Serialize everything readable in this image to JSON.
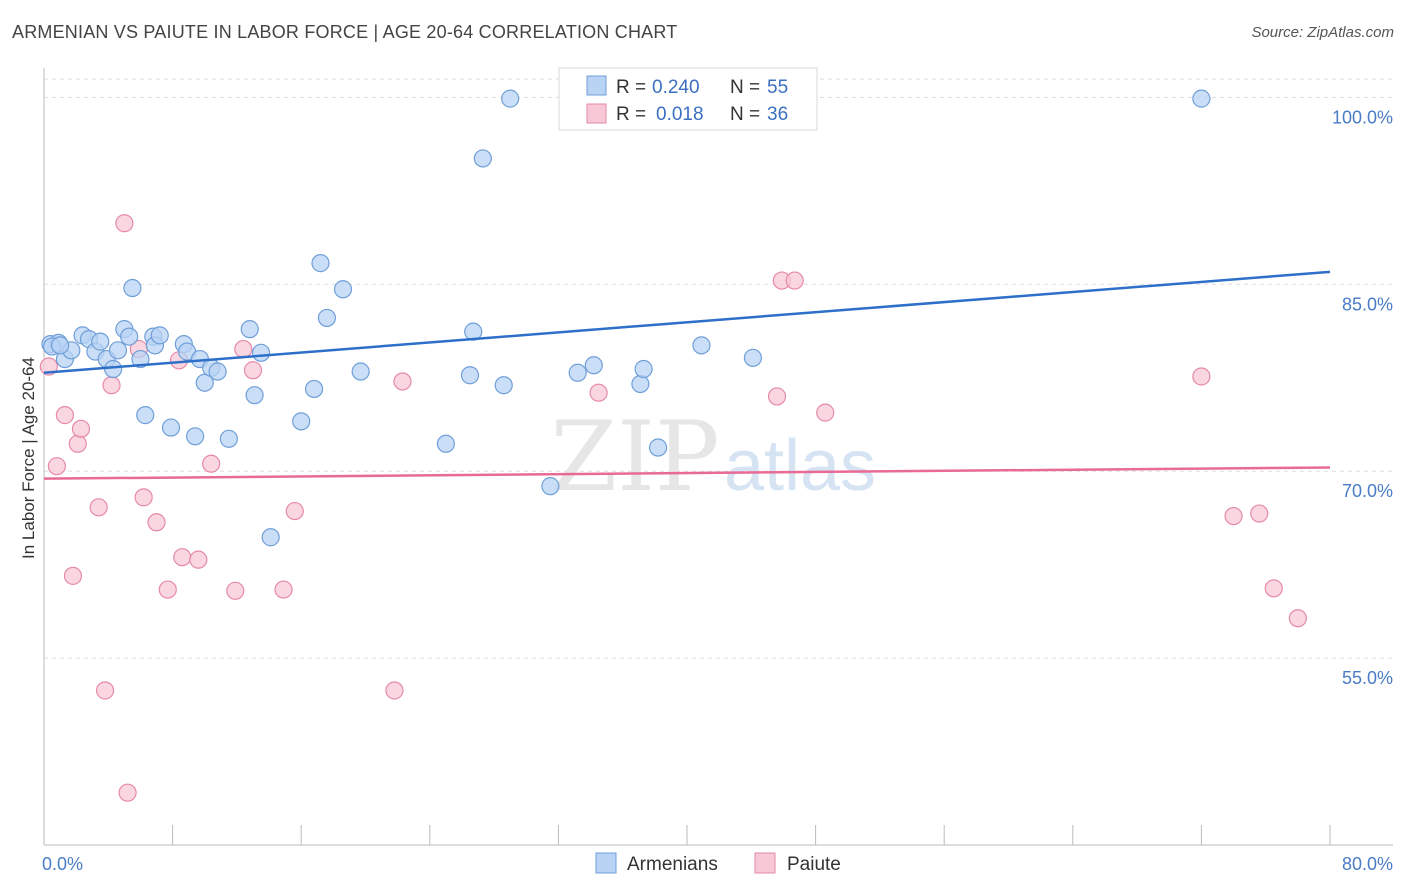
{
  "title": "ARMENIAN VS PAIUTE IN LABOR FORCE | AGE 20-64 CORRELATION CHART",
  "source": "Source: ZipAtlas.com",
  "watermark": {
    "zip": "ZIP",
    "atlas": "atlas"
  },
  "colors": {
    "armenian_fill": "#b8d3f4",
    "armenian_stroke": "#6f9fd8",
    "armenian_line": "#2d6fc9",
    "paiute_fill": "#f8c8d6",
    "paiute_stroke": "#e68aa8",
    "paiute_line": "#e86a95",
    "grid": "#dddddd",
    "tick_text": "#4a7cc5"
  },
  "legend": {
    "rows": [
      {
        "r_label": "R =",
        "r_value": "0.240",
        "n_label": "N =",
        "n_value": "55"
      },
      {
        "r_label": "R =",
        "r_value": "0.018",
        "n_label": "N =",
        "n_value": "36"
      }
    ]
  },
  "chart_data": {
    "type": "scatter",
    "title": "ARMENIAN VS PAIUTE IN LABOR FORCE | AGE 20-64 CORRELATION CHART",
    "xlabel": "",
    "ylabel": "In Labor Force | Age 20-64",
    "xlim": [
      0,
      80
    ],
    "ylim": [
      40,
      103
    ],
    "x_tick_labels": [
      {
        "value": 0,
        "label": "0.0%"
      },
      {
        "value": 80,
        "label": "80.0%"
      }
    ],
    "y_ticks": [
      {
        "value": 100,
        "label": "100.0%"
      },
      {
        "value": 85,
        "label": "85.0%"
      },
      {
        "value": 70,
        "label": "70.0%"
      },
      {
        "value": 55,
        "label": "55.0%"
      }
    ],
    "legend_position": "top-center",
    "series": [
      {
        "name": "Armenians",
        "trend": {
          "x": [
            0,
            80
          ],
          "y": [
            77.9,
            86.0
          ]
        },
        "points": [
          [
            0.4,
            80.2
          ],
          [
            0.9,
            80.3
          ],
          [
            1.3,
            79.0
          ],
          [
            1.7,
            79.7
          ],
          [
            2.4,
            80.9
          ],
          [
            2.8,
            80.6
          ],
          [
            3.2,
            79.6
          ],
          [
            3.5,
            80.4
          ],
          [
            3.9,
            79.0
          ],
          [
            4.3,
            78.2
          ],
          [
            4.6,
            79.7
          ],
          [
            5.0,
            81.4
          ],
          [
            5.3,
            80.8
          ],
          [
            5.5,
            84.7
          ],
          [
            6.0,
            79.0
          ],
          [
            6.3,
            74.5
          ],
          [
            6.8,
            80.8
          ],
          [
            6.9,
            80.1
          ],
          [
            7.2,
            80.9
          ],
          [
            7.9,
            73.5
          ],
          [
            8.7,
            80.2
          ],
          [
            8.9,
            79.6
          ],
          [
            9.4,
            72.8
          ],
          [
            9.7,
            79.0
          ],
          [
            10.0,
            77.1
          ],
          [
            10.4,
            78.3
          ],
          [
            10.8,
            78.0
          ],
          [
            11.5,
            72.6
          ],
          [
            12.8,
            81.4
          ],
          [
            13.1,
            76.1
          ],
          [
            13.5,
            79.5
          ],
          [
            14.1,
            64.7
          ],
          [
            16.0,
            74.0
          ],
          [
            16.8,
            76.6
          ],
          [
            17.2,
            86.7
          ],
          [
            17.6,
            82.3
          ],
          [
            18.6,
            84.6
          ],
          [
            19.7,
            78.0
          ],
          [
            25.0,
            72.2
          ],
          [
            26.5,
            77.7
          ],
          [
            26.7,
            81.2
          ],
          [
            27.3,
            95.1
          ],
          [
            28.6,
            76.9
          ],
          [
            29.0,
            99.9
          ],
          [
            31.5,
            68.8
          ],
          [
            33.2,
            77.9
          ],
          [
            34.2,
            78.5
          ],
          [
            37.1,
            77.0
          ],
          [
            37.3,
            78.2
          ],
          [
            38.2,
            71.9
          ],
          [
            40.9,
            80.1
          ],
          [
            44.1,
            79.1
          ],
          [
            72.0,
            99.9
          ],
          [
            0.5,
            80.0
          ],
          [
            1.0,
            80.1
          ]
        ]
      },
      {
        "name": "Paiute",
        "trend": {
          "x": [
            0,
            80
          ],
          "y": [
            69.4,
            70.3
          ]
        },
        "points": [
          [
            0.3,
            78.4
          ],
          [
            0.8,
            70.4
          ],
          [
            1.3,
            74.5
          ],
          [
            1.8,
            61.6
          ],
          [
            2.1,
            72.2
          ],
          [
            2.3,
            73.4
          ],
          [
            3.4,
            67.1
          ],
          [
            3.8,
            52.4
          ],
          [
            4.2,
            76.9
          ],
          [
            5.0,
            89.9
          ],
          [
            5.2,
            44.2
          ],
          [
            5.9,
            79.8
          ],
          [
            6.2,
            67.9
          ],
          [
            7.0,
            65.9
          ],
          [
            7.7,
            60.5
          ],
          [
            8.4,
            78.9
          ],
          [
            8.6,
            63.1
          ],
          [
            9.6,
            62.9
          ],
          [
            10.4,
            70.6
          ],
          [
            11.9,
            60.4
          ],
          [
            12.4,
            79.8
          ],
          [
            13.0,
            78.1
          ],
          [
            14.9,
            60.5
          ],
          [
            15.6,
            66.8
          ],
          [
            21.8,
            52.4
          ],
          [
            22.3,
            77.2
          ],
          [
            34.5,
            76.3
          ],
          [
            45.6,
            76.0
          ],
          [
            45.9,
            85.3
          ],
          [
            46.7,
            85.3
          ],
          [
            48.6,
            74.7
          ],
          [
            72.0,
            77.6
          ],
          [
            74.0,
            66.4
          ],
          [
            75.6,
            66.6
          ],
          [
            76.5,
            60.6
          ],
          [
            78.0,
            58.2
          ]
        ]
      }
    ]
  },
  "bottom_legend": [
    {
      "label": "Armenians"
    },
    {
      "label": "Paiute"
    }
  ]
}
